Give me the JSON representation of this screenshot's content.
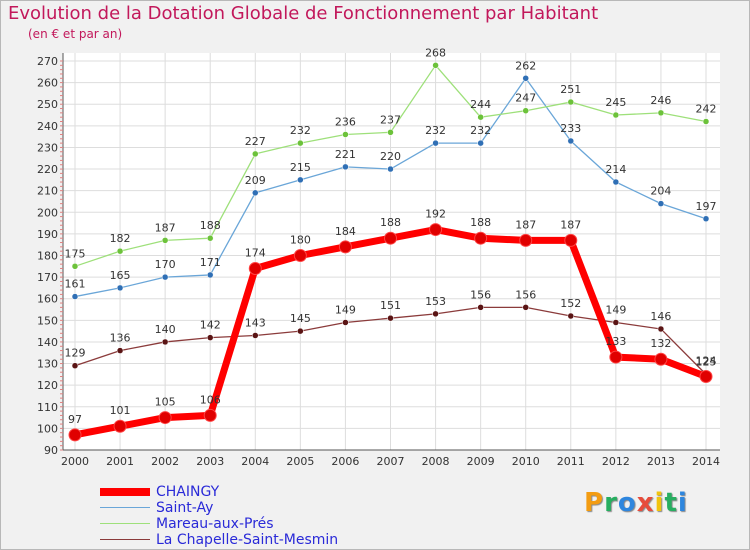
{
  "header": {
    "title": "Evolution de la Dotation Globale de Fonctionnement par Habitant",
    "subtitle": "(en € et par an)"
  },
  "chart_data": {
    "type": "line",
    "title": "Evolution de la Dotation Globale de Fonctionnement par Habitant",
    "subtitle": "(en € et par an)",
    "xlabel": "",
    "ylabel": "",
    "x": [
      "2000",
      "2001",
      "2002",
      "2003",
      "2004",
      "2005",
      "2006",
      "2007",
      "2008",
      "2009",
      "2010",
      "2011",
      "2012",
      "2013",
      "2014"
    ],
    "ylim": [
      90,
      270
    ],
    "yticks": [
      90,
      100,
      110,
      120,
      130,
      140,
      150,
      160,
      170,
      180,
      190,
      200,
      210,
      220,
      230,
      240,
      250,
      260,
      270
    ],
    "grid": true,
    "legend": "bottom-left",
    "series": [
      {
        "name": "Saint-Ay",
        "color": "#6aa6d8",
        "marker": "#2f6fb5",
        "values": [
          161,
          165,
          170,
          171,
          209,
          215,
          221,
          220,
          232,
          232,
          262,
          233,
          214,
          204,
          197
        ]
      },
      {
        "name": "Mareau-aux-Prés",
        "color": "#9ee07a",
        "marker": "#6cc23a",
        "values": [
          175,
          182,
          187,
          188,
          227,
          232,
          236,
          237,
          268,
          244,
          247,
          251,
          245,
          246,
          242
        ]
      },
      {
        "name": "La Chapelle-Saint-Mesmin",
        "color": "#8b3b3b",
        "marker": "#5a1414",
        "values": [
          129,
          136,
          140,
          142,
          143,
          145,
          149,
          151,
          153,
          156,
          156,
          152,
          149,
          146,
          125
        ]
      },
      {
        "name": "CHAINGY",
        "color": "#ff0000",
        "marker": "#e00000",
        "values": [
          97,
          101,
          105,
          106,
          174,
          180,
          184,
          188,
          192,
          188,
          187,
          187,
          133,
          132,
          124
        ]
      }
    ]
  },
  "legend": {
    "items": [
      {
        "label": "CHAINGY",
        "color": "#ff0000"
      },
      {
        "label": "Saint-Ay",
        "color": "#6aa6d8"
      },
      {
        "label": "Mareau-aux-Prés",
        "color": "#9ee07a"
      },
      {
        "label": "La Chapelle-Saint-Mesmin",
        "color": "#8b3b3b"
      }
    ]
  },
  "logo": {
    "letters": [
      "P",
      "r",
      "o",
      "x",
      "i",
      "t",
      "i"
    ],
    "colors": [
      "#f39c12",
      "#27ae60",
      "#2e86de",
      "#e74c3c",
      "#f1c40f",
      "#27ae60",
      "#2e86de"
    ]
  }
}
